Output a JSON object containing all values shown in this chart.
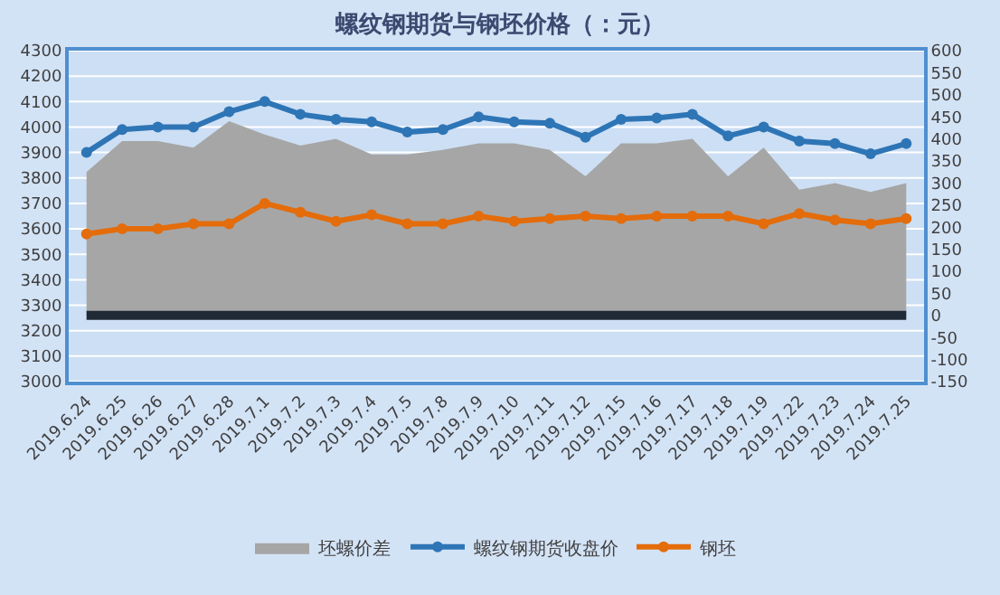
{
  "chart_data": {
    "type": "line",
    "title": "螺纹钢期货与钢坯价格（：元）",
    "categories": [
      "2019.6.24",
      "2019.6.25",
      "2019.6.26",
      "2019.6.27",
      "2019.6.28",
      "2019.7.1",
      "2019.7.2",
      "2019.7.3",
      "2019.7.4",
      "2019.7.5",
      "2019.7.8",
      "2019.7.9",
      "2019.7.10",
      "2019.7.11",
      "2019.7.12",
      "2019.7.15",
      "2019.7.16",
      "2019.7.17",
      "2019.7.18",
      "2019.7.19",
      "2019.7.22",
      "2019.7.23",
      "2019.7.24",
      "2019.7.25"
    ],
    "series": [
      {
        "name": "坯螺价差",
        "type": "area",
        "axis": "y2",
        "color": "#a6a6a6",
        "marker": "none",
        "values": [
          325,
          395,
          395,
          380,
          440,
          410,
          385,
          400,
          365,
          365,
          375,
          390,
          390,
          375,
          315,
          390,
          390,
          400,
          315,
          380,
          285,
          300,
          280,
          300
        ]
      },
      {
        "name": "螺纹钢期货收盘价",
        "color": "#2e75b6",
        "marker": "circle",
        "values": [
          3900,
          3990,
          4000,
          4000,
          4060,
          4100,
          4050,
          4030,
          4020,
          3980,
          3990,
          4040,
          4020,
          4015,
          3960,
          4030,
          4035,
          4050,
          3965,
          4000,
          3945,
          3935,
          3895,
          3935
        ]
      },
      {
        "name": "钢坯",
        "color": "#e46c0a",
        "marker": "circle",
        "values": [
          3580,
          3600,
          3600,
          3620,
          3620,
          3700,
          3665,
          3630,
          3655,
          3620,
          3620,
          3650,
          3630,
          3640,
          3650,
          3640,
          3650,
          3650,
          3650,
          3620,
          3660,
          3635,
          3620,
          3640
        ]
      }
    ],
    "ylim": [
      3000,
      4300
    ],
    "yticks": [
      3000,
      3100,
      3200,
      3300,
      3400,
      3500,
      3600,
      3700,
      3800,
      3900,
      4000,
      4100,
      4200,
      4300
    ],
    "y2lim": [
      -150,
      600
    ],
    "y2ticks": [
      -150,
      -100,
      -50,
      0,
      50,
      100,
      150,
      200,
      250,
      300,
      350,
      400,
      450,
      500,
      550,
      600
    ],
    "ref_lines": [
      {
        "axis": "y2",
        "value": 0,
        "color": "#1f2a36"
      }
    ],
    "grid": "y",
    "legend": "bottom",
    "line_style": "solid"
  }
}
